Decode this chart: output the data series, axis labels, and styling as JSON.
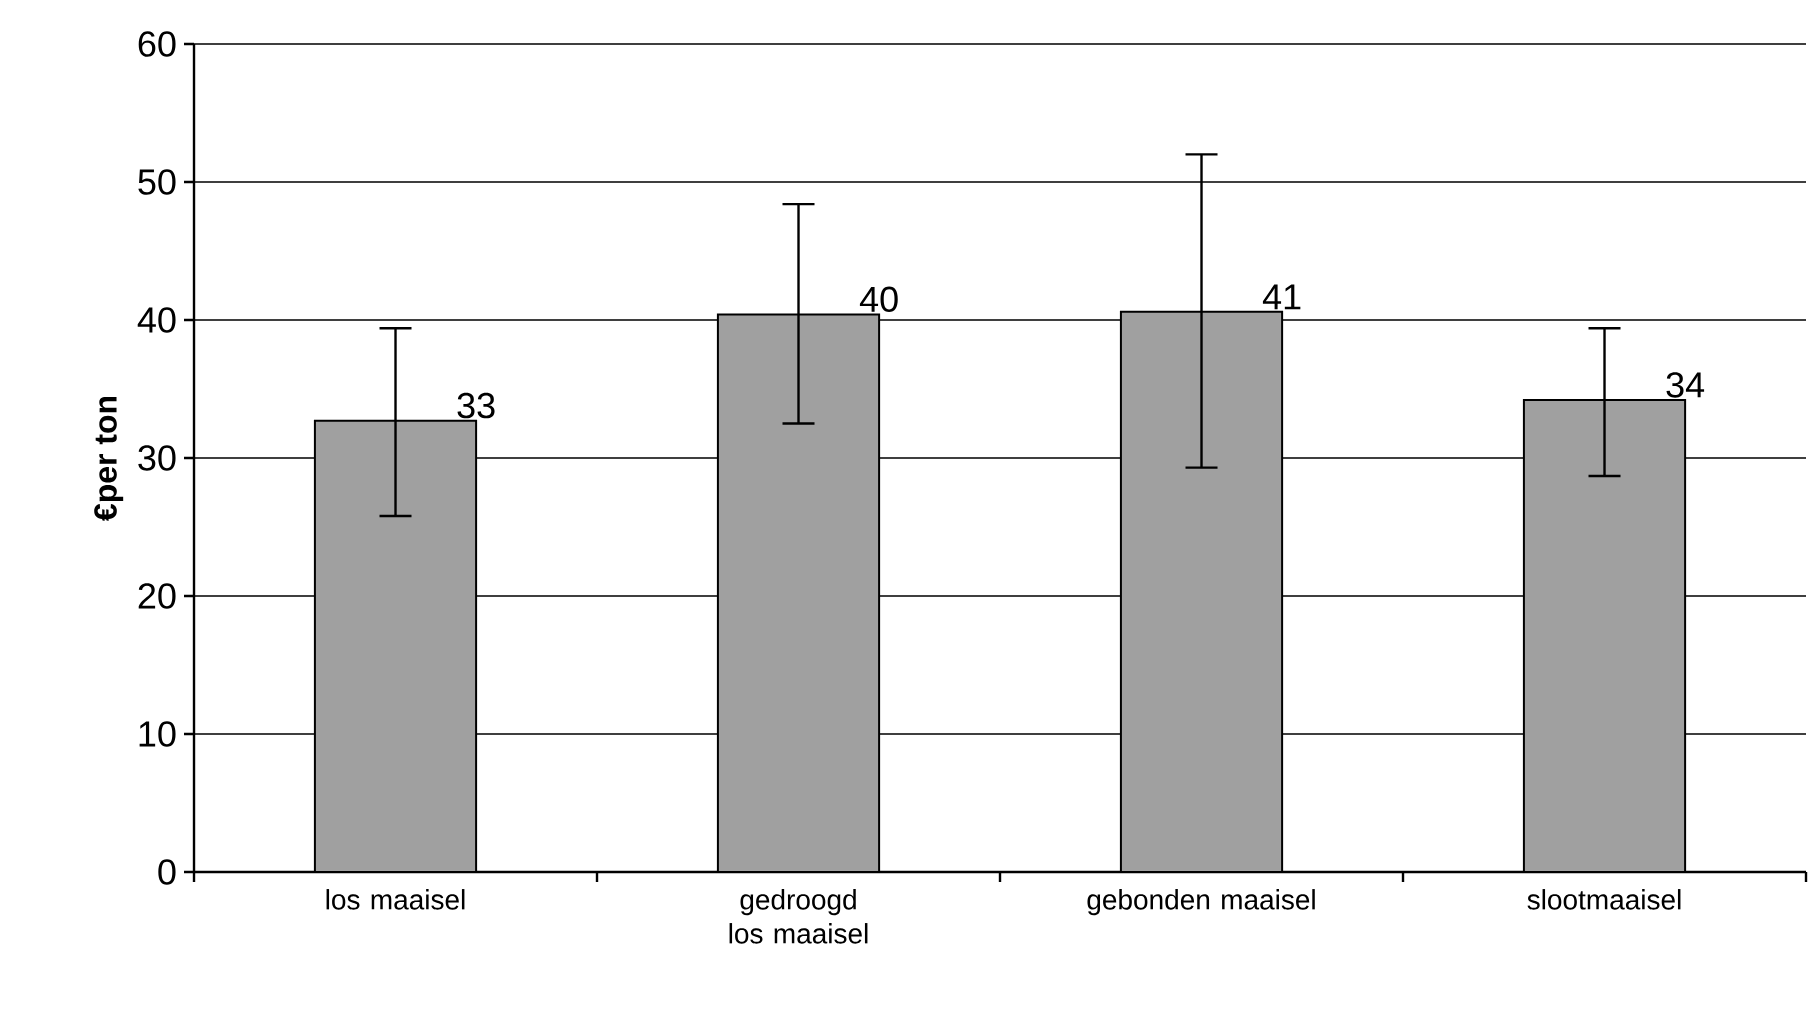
{
  "chart_data": {
    "type": "bar",
    "ylabel": "€per ton",
    "categories": [
      "los maaisel",
      "gedroogd los maaisel",
      "gebonden maaisel",
      "slootmaaisel"
    ],
    "values": [
      32.7,
      40.4,
      40.6,
      34.2
    ],
    "value_labels": [
      "33",
      "40",
      "41",
      "34"
    ],
    "errors": [
      [
        25.8,
        39.4
      ],
      [
        32.5,
        48.4
      ],
      [
        29.3,
        52.0
      ],
      [
        28.7,
        39.4
      ]
    ],
    "color": "#a0a0a0",
    "ylim": [
      0,
      60
    ],
    "yticks": [
      0,
      10,
      20,
      30,
      40,
      50,
      60
    ],
    "grid": "y"
  }
}
